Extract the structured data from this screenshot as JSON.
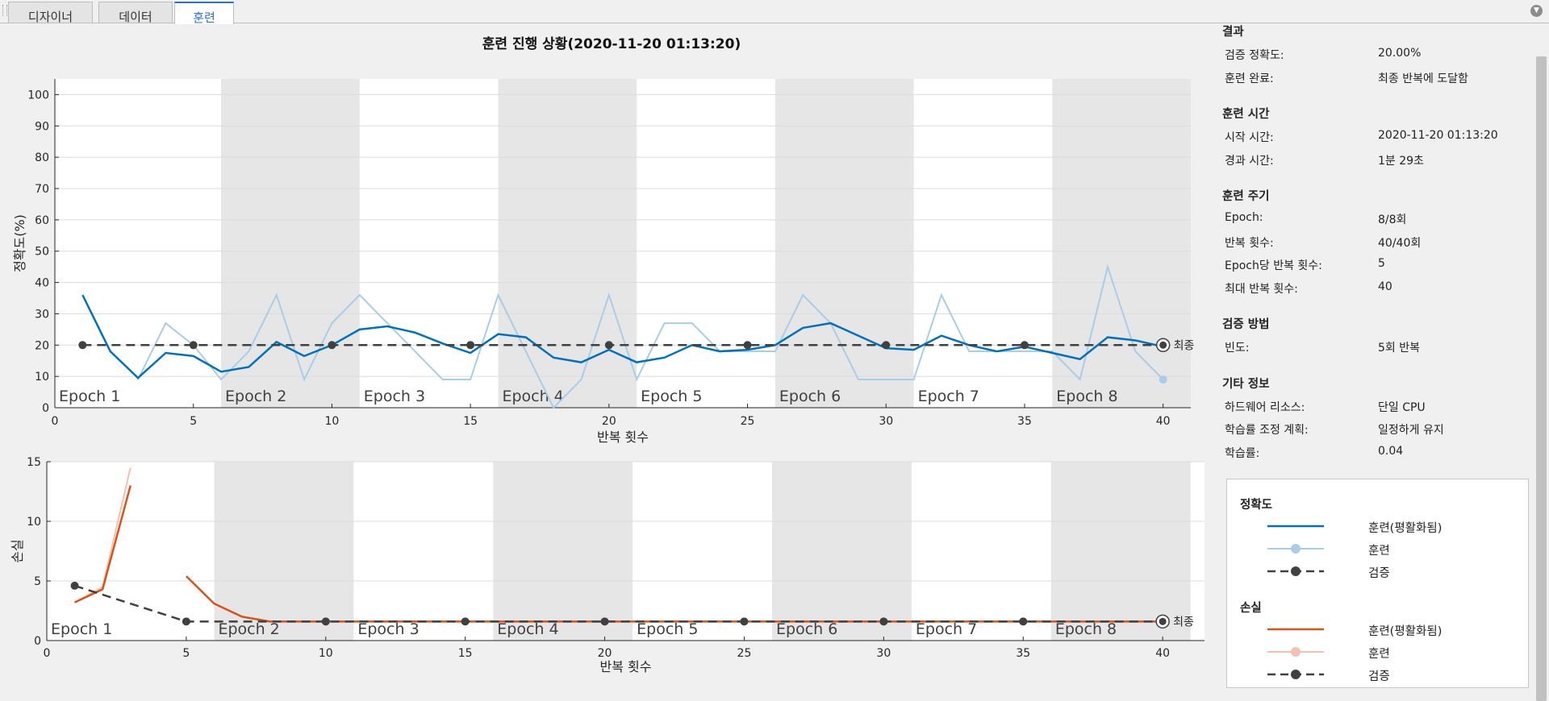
{
  "tabs": [
    {
      "label": "디자이너",
      "active": false
    },
    {
      "label": "데이터",
      "active": false
    },
    {
      "label": "훈련",
      "active": true
    }
  ],
  "title": "훈련 진행 상황(2020-11-20 01:13:20)",
  "colors": {
    "smoothed_accuracy": "#0072bd",
    "raw_accuracy": "#a8cde8",
    "smoothed_loss": "#d95319",
    "raw_loss": "#f3c1ad",
    "validation": "#404040",
    "epoch_shade": "#e6e6e6"
  },
  "chart_data": [
    {
      "type": "line",
      "ylabel": "정확도(%)",
      "xlabel": "반복 횟수",
      "xlim": [
        0,
        41
      ],
      "ylim": [
        0,
        105
      ],
      "xticks": [
        0,
        5,
        10,
        15,
        20,
        25,
        30,
        35,
        40
      ],
      "yticks": [
        0,
        10,
        20,
        30,
        40,
        50,
        60,
        70,
        80,
        90,
        100
      ],
      "epochs": [
        "Epoch 1",
        "Epoch 2",
        "Epoch 3",
        "Epoch 4",
        "Epoch 5",
        "Epoch 6",
        "Epoch 7",
        "Epoch 8"
      ],
      "final_marker_label": "최종",
      "series": [
        {
          "name": "훈련(평활화됨)",
          "x": [
            1,
            2,
            3,
            4,
            5,
            6,
            7,
            8,
            9,
            10,
            11,
            12,
            13,
            14,
            15,
            16,
            17,
            18,
            19,
            20,
            21,
            22,
            23,
            24,
            25,
            26,
            27,
            28,
            29,
            30,
            31,
            32,
            33,
            34,
            35,
            36,
            37,
            38,
            39,
            40
          ],
          "y": [
            36,
            18,
            9.5,
            17.5,
            16.5,
            11.5,
            13,
            21,
            16.5,
            20,
            25,
            26,
            24,
            20.5,
            17.5,
            23.5,
            22.5,
            16,
            14.5,
            18.5,
            14.5,
            16,
            20,
            18,
            18.5,
            20,
            25.5,
            27,
            23,
            19,
            18.5,
            23,
            20,
            18,
            19.5,
            17.5,
            15.5,
            22.5,
            21.5,
            19.5
          ]
        },
        {
          "name": "훈련",
          "x": [
            3,
            4,
            5,
            6,
            7,
            8,
            9,
            10,
            11,
            12,
            13,
            14,
            15,
            16,
            17,
            18,
            19,
            20,
            21,
            22,
            23,
            24,
            25,
            26,
            27,
            28,
            29,
            30,
            31,
            32,
            33,
            34,
            35,
            36,
            37,
            38,
            39,
            40
          ],
          "y": [
            9,
            27,
            20,
            9,
            18,
            36,
            9,
            27,
            36,
            27,
            18,
            9,
            9,
            36,
            18,
            0,
            9,
            36,
            9,
            27,
            27,
            18,
            18,
            18,
            36,
            27,
            9,
            9,
            9,
            36,
            18,
            18,
            18,
            18,
            9,
            45,
            18,
            9
          ]
        },
        {
          "name": "검증",
          "x": [
            1,
            5,
            10,
            15,
            20,
            25,
            30,
            35,
            40
          ],
          "y": [
            20,
            20,
            20,
            20,
            20,
            20,
            20,
            20,
            20
          ]
        }
      ]
    },
    {
      "type": "line",
      "ylabel": "손실",
      "xlabel": "반복 횟수",
      "xlim": [
        0,
        41.5
      ],
      "ylim": [
        0,
        15
      ],
      "xticks": [
        0,
        5,
        10,
        15,
        20,
        25,
        30,
        35,
        40
      ],
      "yticks": [
        0,
        5,
        10,
        15
      ],
      "epochs": [
        "Epoch 1",
        "Epoch 2",
        "Epoch 3",
        "Epoch 4",
        "Epoch 5",
        "Epoch 6",
        "Epoch 7",
        "Epoch 8"
      ],
      "final_marker_label": "최종",
      "series": [
        {
          "name": "훈련(평활화됨)",
          "segments": [
            {
              "x": [
                1,
                2,
                3
              ],
              "y": [
                3.2,
                4.3,
                13
              ]
            },
            {
              "x": [
                5,
                6,
                7,
                8,
                9,
                10,
                15,
                20,
                25,
                30,
                35,
                40
              ],
              "y": [
                5.4,
                3.1,
                2.0,
                1.6,
                1.6,
                1.6,
                1.6,
                1.6,
                1.6,
                1.6,
                1.6,
                1.6
              ]
            }
          ]
        },
        {
          "name": "훈련",
          "segments": [
            {
              "x": [
                1,
                2,
                3
              ],
              "y": [
                3.2,
                4.5,
                14.5
              ]
            },
            {
              "x": [
                8,
                10,
                15,
                20,
                25,
                30,
                35,
                40
              ],
              "y": [
                1.6,
                1.6,
                1.6,
                1.6,
                1.6,
                1.6,
                1.6,
                1.6
              ]
            }
          ]
        },
        {
          "name": "검증",
          "x": [
            1,
            5,
            10,
            15,
            20,
            25,
            30,
            35,
            40
          ],
          "y": [
            4.6,
            1.6,
            1.6,
            1.6,
            1.6,
            1.6,
            1.6,
            1.6,
            1.6
          ]
        }
      ]
    }
  ],
  "info": {
    "sections": [
      {
        "title": "결과",
        "rows": [
          {
            "k": "검증 정확도:",
            "v": "20.00%"
          },
          {
            "k": "훈련 완료:",
            "v": "최종 반복에 도달함"
          }
        ]
      },
      {
        "title": "훈련 시간",
        "rows": [
          {
            "k": "시작 시간:",
            "v": "2020-11-20 01:13:20"
          },
          {
            "k": "경과 시간:",
            "v": "1분 29초"
          }
        ]
      },
      {
        "title": "훈련 주기",
        "rows": [
          {
            "k": "Epoch:",
            "v": "8/8회"
          },
          {
            "k": "반복 횟수:",
            "v": "40/40회"
          },
          {
            "k": "Epoch당 반복 횟수:",
            "v": "5"
          },
          {
            "k": "최대 반복 횟수:",
            "v": "40"
          }
        ]
      },
      {
        "title": "검증 방법",
        "rows": [
          {
            "k": "빈도:",
            "v": "5회 반복"
          }
        ]
      },
      {
        "title": "기타 정보",
        "rows": [
          {
            "k": "하드웨어 리소스:",
            "v": "단일 CPU"
          },
          {
            "k": "학습률 조정 계획:",
            "v": "일정하게 유지"
          },
          {
            "k": "학습률:",
            "v": "0.04"
          }
        ]
      }
    ]
  },
  "legend": {
    "accuracy_title": "정확도",
    "loss_title": "손실",
    "accuracy_items": [
      "훈련(평활화됨)",
      "훈련",
      "검증"
    ],
    "loss_items": [
      "훈련(평활화됨)",
      "훈련",
      "검증"
    ]
  }
}
